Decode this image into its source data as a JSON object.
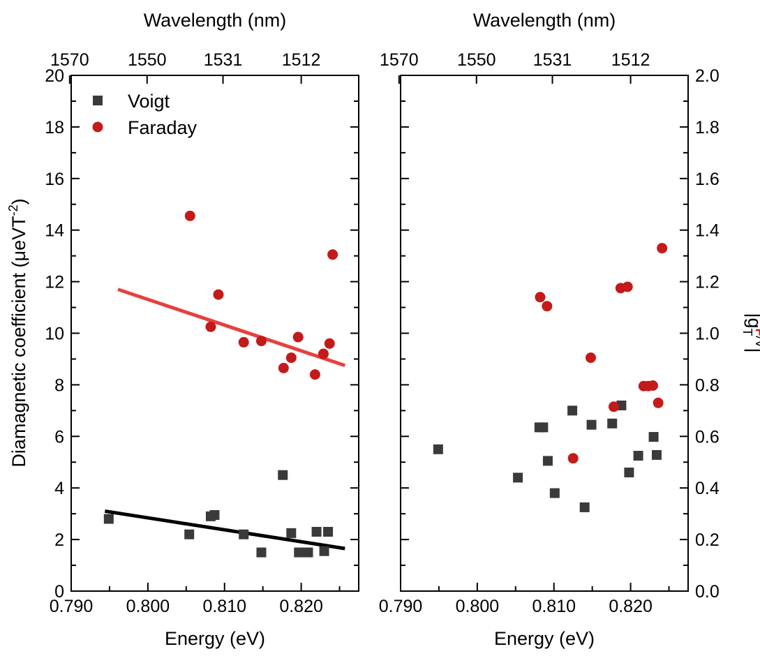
{
  "chart_data": [
    {
      "type": "scatter",
      "panel": "left",
      "xlabel": "Energy (eV)",
      "ylabel_main": "Diamagnetic coefficient (μeVT",
      "ylabel_sup": "-2",
      "ylabel_end": ")",
      "top_xlabel": "Wavelength (nm)",
      "xlim": [
        0.79,
        0.8275
      ],
      "ylim": [
        0,
        20
      ],
      "x_ticks": [
        0.79,
        0.8,
        0.81,
        0.82
      ],
      "x_tick_labels": [
        "0.790",
        "0.800",
        "0.810",
        "0.820"
      ],
      "y_ticks": [
        0,
        2,
        4,
        6,
        8,
        10,
        12,
        14,
        16,
        18,
        20
      ],
      "y_tick_labels": [
        "0",
        "2",
        "4",
        "6",
        "8",
        "10",
        "12",
        "14",
        "16",
        "18",
        "20"
      ],
      "top_tick_energies": [
        0.7898,
        0.7999,
        0.8098,
        0.82
      ],
      "top_tick_labels": [
        "1570",
        "1550",
        "1531",
        "1512"
      ],
      "legend": "top-left",
      "grid": false,
      "series": [
        {
          "name": "Voigt",
          "marker": "square",
          "color": "#3a3a3a",
          "x": [
            0.7949,
            0.8054,
            0.8082,
            0.8087,
            0.8125,
            0.8148,
            0.8176,
            0.8187,
            0.8197,
            0.8209,
            0.822,
            0.823,
            0.8235
          ],
          "y": [
            2.8,
            2.2,
            2.9,
            2.95,
            2.2,
            1.5,
            4.5,
            2.25,
            1.5,
            1.5,
            2.3,
            1.55,
            2.3
          ]
        },
        {
          "name": "Faraday",
          "marker": "circle",
          "color": "#c41a1a",
          "x": [
            0.8055,
            0.8082,
            0.8092,
            0.8125,
            0.8148,
            0.8177,
            0.8187,
            0.8196,
            0.8218,
            0.8229,
            0.8237,
            0.8241
          ],
          "y": [
            14.55,
            10.25,
            11.5,
            9.65,
            9.7,
            8.65,
            9.05,
            9.85,
            8.4,
            9.2,
            9.6,
            13.05
          ]
        }
      ],
      "fits": [
        {
          "color": "#000000",
          "x": [
            0.7944,
            0.8257
          ],
          "y": [
            3.1,
            1.65
          ]
        },
        {
          "color": "#e8403e",
          "x": [
            0.7961,
            0.8257
          ],
          "y": [
            11.7,
            8.75
          ]
        }
      ]
    },
    {
      "type": "scatter",
      "panel": "right",
      "xlabel": "Energy (eV)",
      "ylabel_main": "|g",
      "ylabel_sub": "T",
      "ylabel_sup_f": "F",
      "ylabel_sup_v": "/V",
      "ylabel_end": "|",
      "top_xlabel": "Wavelength (nm)",
      "xlim": [
        0.79,
        0.8275
      ],
      "ylim": [
        0,
        2.0
      ],
      "x_ticks": [
        0.79,
        0.8,
        0.81,
        0.82
      ],
      "x_tick_labels": [
        "0.790",
        "0.800",
        "0.810",
        "0.820"
      ],
      "y_ticks": [
        0,
        0.2,
        0.4,
        0.6,
        0.8,
        1.0,
        1.2,
        1.4,
        1.6,
        1.8,
        2.0
      ],
      "y_tick_labels": [
        "0.0",
        "0.2",
        "0.4",
        "0.6",
        "0.8",
        "1.0",
        "1.2",
        "1.4",
        "1.6",
        "1.8",
        "2.0"
      ],
      "top_tick_energies": [
        0.7898,
        0.7999,
        0.8098,
        0.82
      ],
      "top_tick_labels": [
        "1570",
        "1550",
        "1531",
        "1512"
      ],
      "grid": false,
      "series": [
        {
          "name": "Voigt",
          "marker": "square",
          "color": "#3a3a3a",
          "x": [
            0.7949,
            0.8053,
            0.8081,
            0.8086,
            0.8092,
            0.8101,
            0.8124,
            0.814,
            0.8149,
            0.8176,
            0.8188,
            0.8198,
            0.821,
            0.823,
            0.8234
          ],
          "y": [
            0.55,
            0.44,
            0.635,
            0.635,
            0.505,
            0.38,
            0.7,
            0.325,
            0.645,
            0.65,
            0.72,
            0.46,
            0.525,
            0.598,
            0.528
          ]
        },
        {
          "name": "Faraday",
          "marker": "circle",
          "color": "#c41a1a",
          "x": [
            0.8082,
            0.8091,
            0.8125,
            0.8148,
            0.8178,
            0.8187,
            0.8196,
            0.8217,
            0.8223,
            0.8229,
            0.8236,
            0.8241
          ],
          "y": [
            1.14,
            1.105,
            0.515,
            0.905,
            0.715,
            1.175,
            1.18,
            0.795,
            0.795,
            0.797,
            0.73,
            1.33
          ]
        }
      ]
    }
  ]
}
